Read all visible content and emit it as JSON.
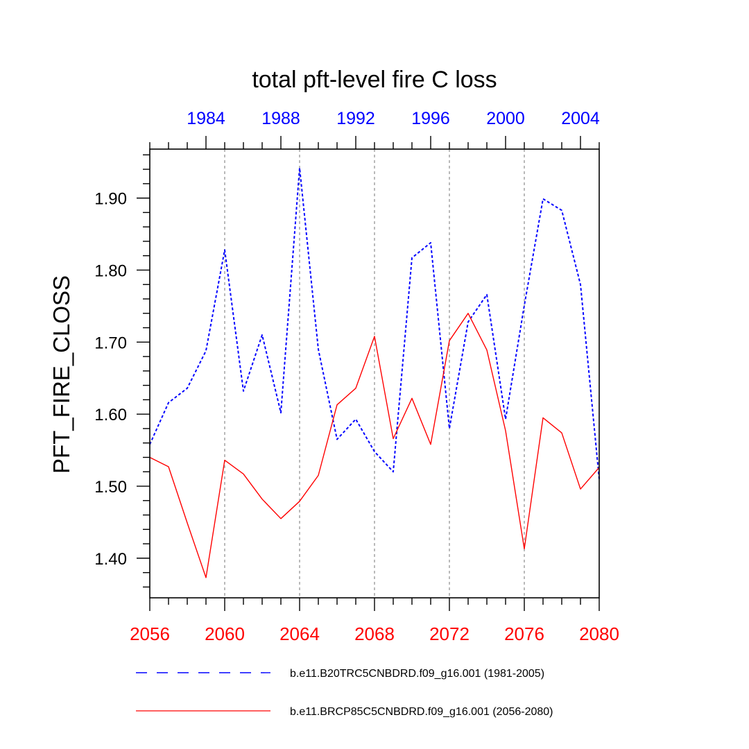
{
  "chart_data": {
    "type": "line",
    "title": "total pft-level fire C loss",
    "xlabel": "",
    "ylabel": "PFT_FIRE_CLOSS",
    "xlim": [
      2056,
      2080
    ],
    "ylim": [
      1.345,
      1.968
    ],
    "x_major_ticks": [
      2056,
      2060,
      2064,
      2068,
      2072,
      2076,
      2080
    ],
    "x_tick_labels": [
      "2056",
      "2060",
      "2064",
      "2068",
      "2072",
      "2076",
      "2080"
    ],
    "x_minor_ticks": [
      2057,
      2058,
      2059,
      2061,
      2062,
      2063,
      2065,
      2066,
      2067,
      2069,
      2070,
      2071,
      2073,
      2074,
      2075,
      2077,
      2078,
      2079
    ],
    "top_axis": {
      "offset_years": -75,
      "major_ticks": [
        1984,
        1988,
        1992,
        1996,
        2000,
        2004
      ],
      "tick_labels": [
        "1984",
        "1988",
        "1992",
        "1996",
        "2000",
        "2004"
      ],
      "color": "#0000ff"
    },
    "y_major_ticks": [
      1.4,
      1.5,
      1.6,
      1.7,
      1.8,
      1.9
    ],
    "y_tick_labels": [
      "1.40",
      "1.50",
      "1.60",
      "1.70",
      "1.80",
      "1.90"
    ],
    "y_minor_step": 0.02,
    "vertical_grid": [
      2060,
      2064,
      2068,
      2072,
      2076
    ],
    "series": [
      {
        "name": "b.e11.B20TRC5CNBDRD.f09_g16.001 (1981-2005)",
        "color": "#0000ff",
        "style": "dashed",
        "x": [
          2056,
          2057,
          2058,
          2059,
          2060,
          2061,
          2062,
          2063,
          2064,
          2065,
          2066,
          2067,
          2068,
          2069,
          2070,
          2071,
          2072,
          2073,
          2074,
          2075,
          2076,
          2077,
          2078,
          2079,
          2080
        ],
        "values": [
          1.558,
          1.616,
          1.636,
          1.688,
          1.828,
          1.632,
          1.71,
          1.602,
          1.942,
          1.69,
          1.565,
          1.593,
          1.548,
          1.52,
          1.817,
          1.838,
          1.58,
          1.728,
          1.766,
          1.593,
          1.751,
          1.899,
          1.883,
          1.78,
          1.51
        ]
      },
      {
        "name": "b.e11.BRCP85C5CNBDRD.f09_g16.001 (2056-2080)",
        "color": "#ff0000",
        "style": "solid",
        "x": [
          2056,
          2057,
          2058,
          2059,
          2060,
          2061,
          2062,
          2063,
          2064,
          2065,
          2066,
          2067,
          2068,
          2069,
          2070,
          2071,
          2072,
          2073,
          2074,
          2075,
          2076,
          2077,
          2078,
          2079,
          2080
        ],
        "values": [
          1.54,
          1.527,
          1.449,
          1.373,
          1.536,
          1.517,
          1.482,
          1.455,
          1.479,
          1.515,
          1.613,
          1.636,
          1.708,
          1.566,
          1.622,
          1.558,
          1.702,
          1.74,
          1.689,
          1.577,
          1.413,
          1.595,
          1.574,
          1.496,
          1.526
        ]
      }
    ],
    "legend_position": "bottom"
  }
}
